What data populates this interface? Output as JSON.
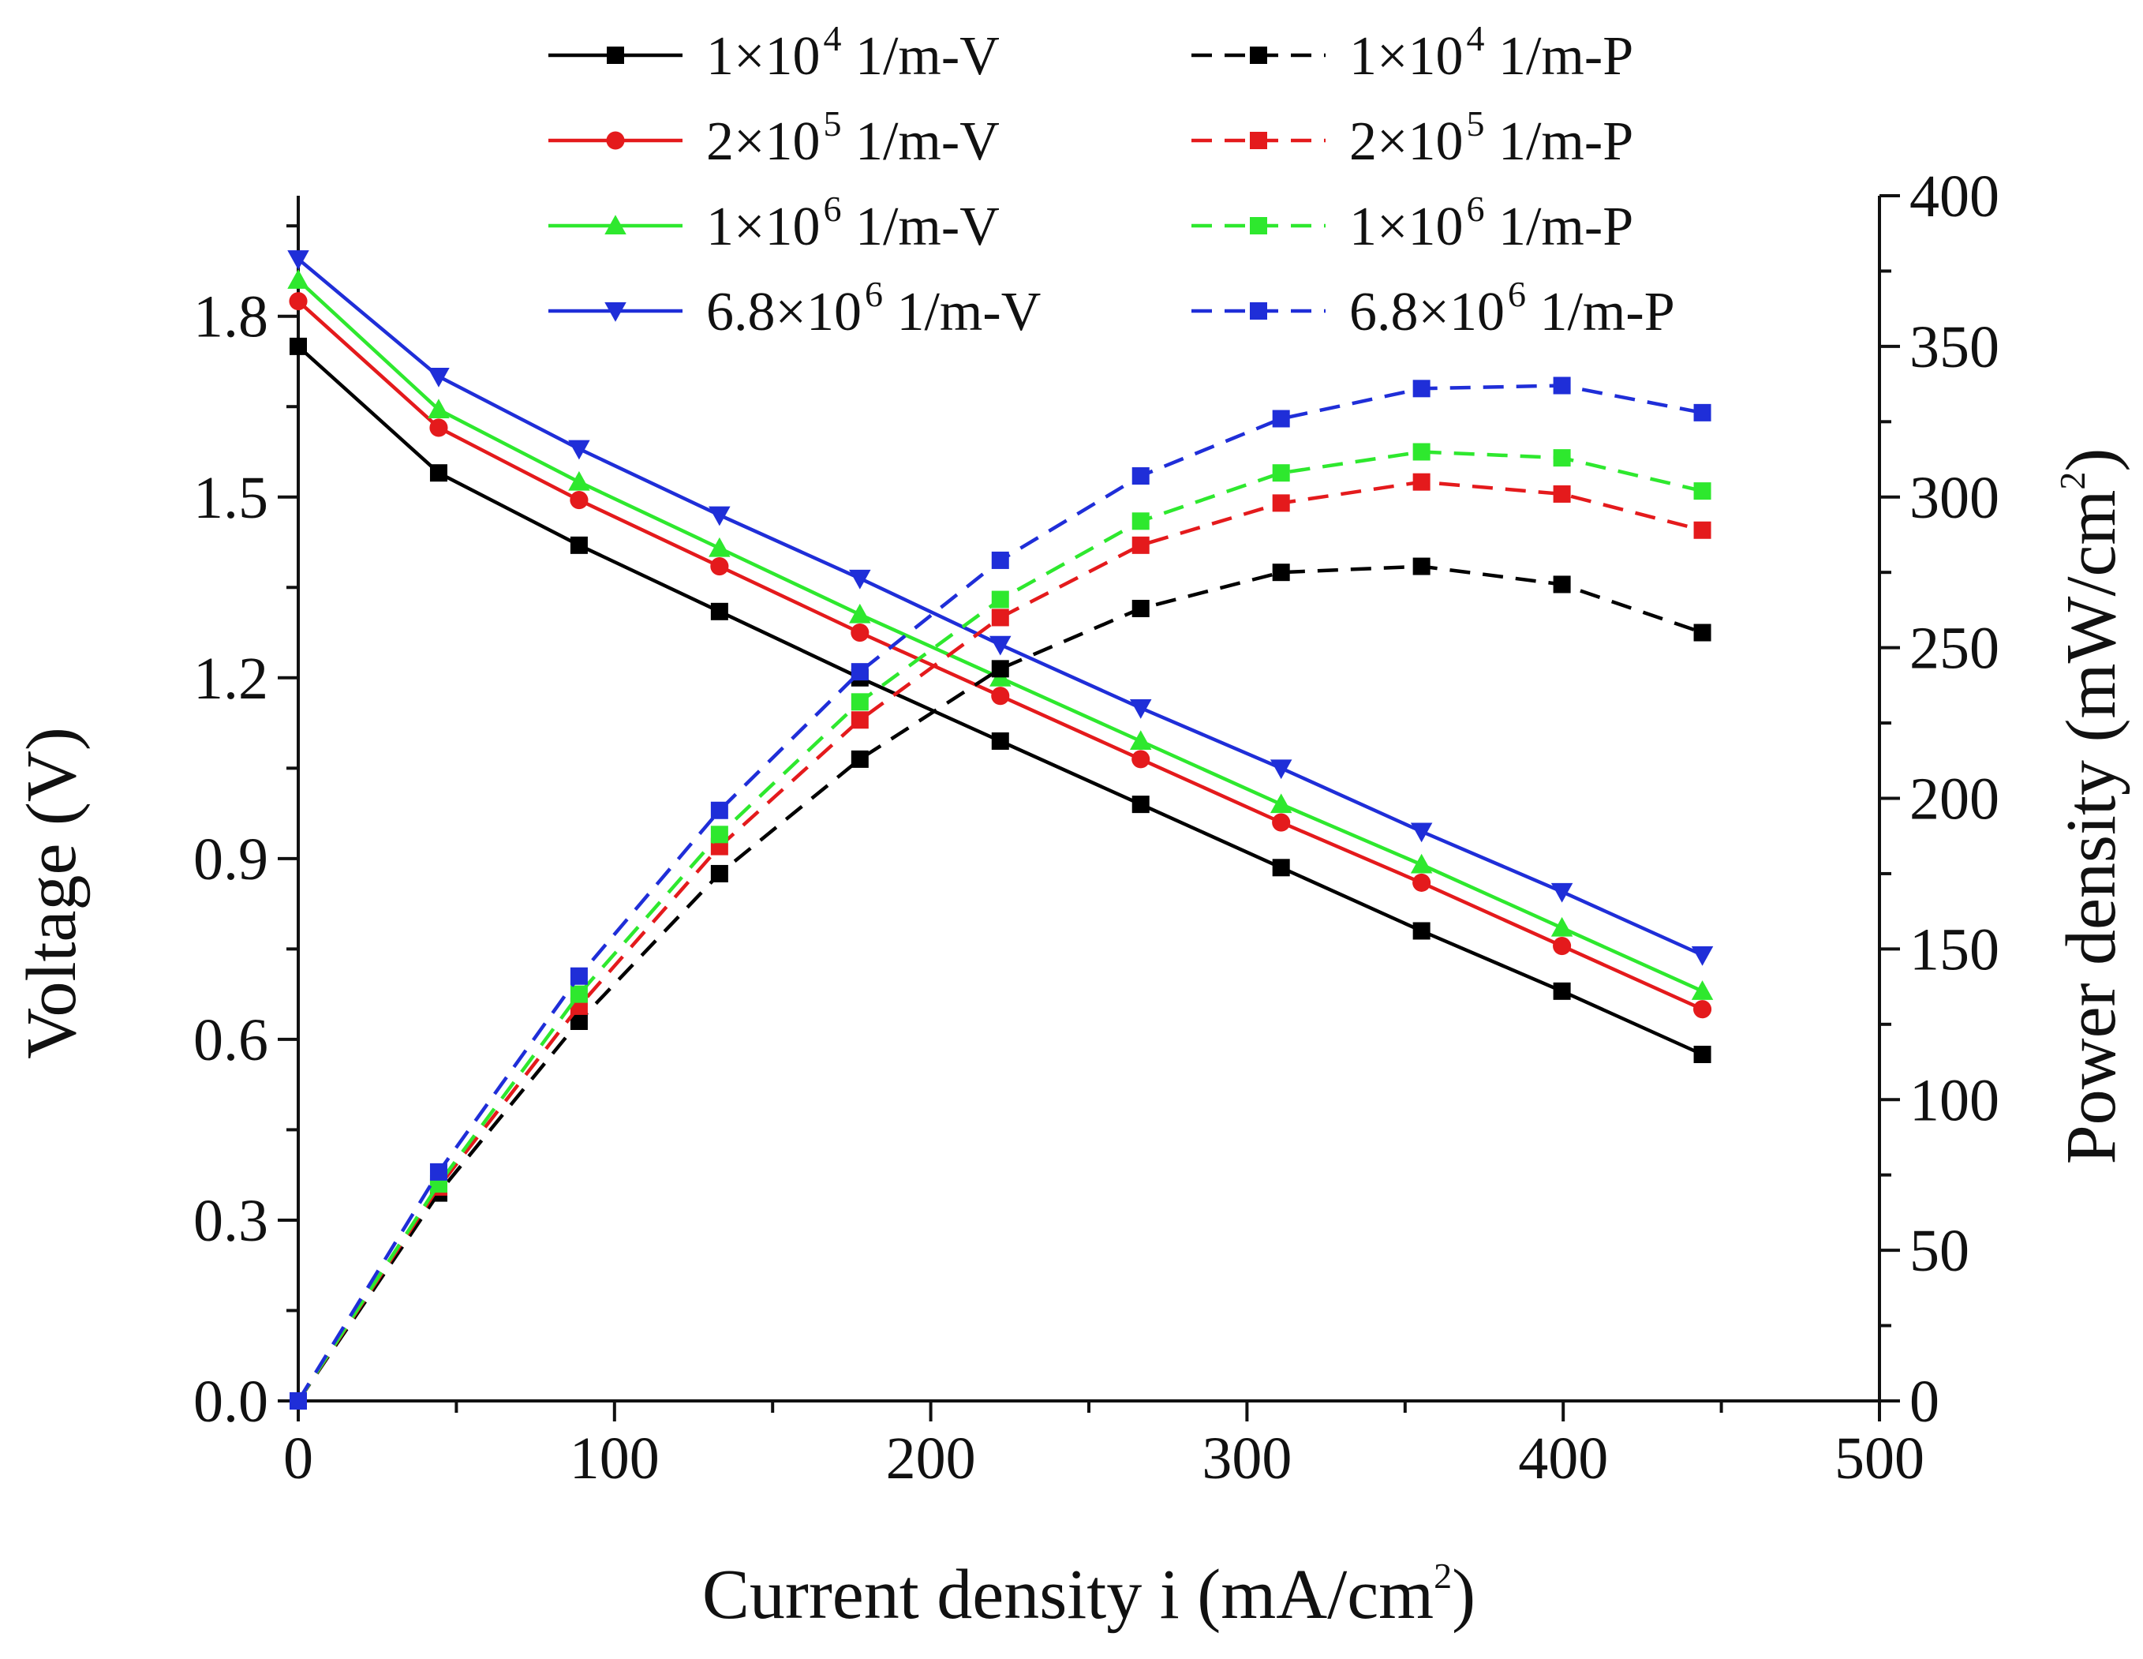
{
  "chart_data": {
    "type": "line",
    "title": "",
    "x_axis": {
      "label": "Current density i (mA/cm",
      "label_sup": "2",
      "label_end": ")",
      "range": [
        0,
        500
      ],
      "ticks": [
        0,
        100,
        200,
        300,
        400,
        500
      ],
      "tick_labels": [
        "0",
        "100",
        "200",
        "300",
        "400",
        "500"
      ],
      "minor_step": 50
    },
    "y_axis_left": {
      "label": "Voltage (V)",
      "range": [
        0,
        2.0
      ],
      "ticks": [
        0,
        0.3,
        0.6,
        0.9,
        1.2,
        1.5,
        1.8
      ],
      "tick_labels": [
        "0.0",
        "0.3",
        "0.6",
        "0.9",
        "1.2",
        "1.5",
        "1.8"
      ],
      "minor_step": 0.15
    },
    "y_axis_right": {
      "label": "Power density (mW/cm",
      "label_sup": "2",
      "label_end": ")",
      "range": [
        0,
        400
      ],
      "ticks": [
        0,
        50,
        100,
        150,
        200,
        250,
        300,
        350,
        400
      ],
      "tick_labels": [
        "0",
        "50",
        "100",
        "150",
        "200",
        "250",
        "300",
        "350",
        "400"
      ],
      "minor_step": 25
    },
    "x": [
      0,
      44.4,
      88.8,
      133.2,
      177.6,
      222,
      266.4,
      310.8,
      355.2,
      399.6,
      444
    ],
    "series": [
      {
        "name": "1×10^4 1/m-V",
        "legend_prefix": "1×10",
        "legend_exp": "4",
        "legend_suffix": " 1/m-V",
        "axis": "left",
        "line": "solid",
        "marker": "square",
        "color": "#000000",
        "values": [
          1.75,
          1.54,
          1.42,
          1.31,
          1.2,
          1.095,
          0.99,
          0.885,
          0.78,
          0.68,
          0.575
        ]
      },
      {
        "name": "2×10^5 1/m-V",
        "legend_prefix": "2×10",
        "legend_exp": "5",
        "legend_suffix": " 1/m-V",
        "axis": "left",
        "line": "solid",
        "marker": "circle",
        "color": "#e41a1c",
        "values": [
          1.825,
          1.615,
          1.495,
          1.385,
          1.275,
          1.17,
          1.065,
          0.96,
          0.86,
          0.755,
          0.65
        ]
      },
      {
        "name": "1×10^6 1/m-V",
        "legend_prefix": "1×10",
        "legend_exp": "6",
        "legend_suffix": " 1/m-V",
        "axis": "left",
        "line": "solid",
        "marker": "triangle-up",
        "color": "#2ee82e",
        "values": [
          1.86,
          1.645,
          1.525,
          1.415,
          1.305,
          1.2,
          1.095,
          0.99,
          0.89,
          0.785,
          0.68
        ]
      },
      {
        "name": "6.8×10^6 1/m-V",
        "legend_prefix": "6.8×10",
        "legend_exp": "6",
        "legend_suffix": " 1/m-V",
        "axis": "left",
        "line": "solid",
        "marker": "triangle-down",
        "color": "#1f2ed8",
        "values": [
          1.895,
          1.7,
          1.58,
          1.47,
          1.365,
          1.255,
          1.15,
          1.05,
          0.945,
          0.845,
          0.74
        ]
      },
      {
        "name": "1×10^4 1/m-P",
        "legend_prefix": "1×10",
        "legend_exp": "4",
        "legend_suffix": " 1/m-P",
        "axis": "right",
        "line": "dashed",
        "marker": "square",
        "color": "#000000",
        "values": [
          0,
          69,
          126,
          175,
          213,
          243,
          263,
          275,
          277,
          271,
          255
        ]
      },
      {
        "name": "2×10^5 1/m-P",
        "legend_prefix": "2×10",
        "legend_exp": "5",
        "legend_suffix": " 1/m-P",
        "axis": "right",
        "line": "dashed",
        "marker": "square",
        "color": "#e41a1c",
        "values": [
          0,
          71,
          131,
          184,
          226,
          260,
          284,
          298,
          305,
          301,
          289
        ]
      },
      {
        "name": "1×10^6 1/m-P",
        "legend_prefix": "1×10",
        "legend_exp": "6",
        "legend_suffix": " 1/m-P",
        "axis": "right",
        "line": "dashed",
        "marker": "square",
        "color": "#2ee82e",
        "values": [
          0,
          72,
          135,
          188,
          232,
          266,
          292,
          308,
          315,
          313,
          302
        ]
      },
      {
        "name": "6.8×10^6 1/m-P",
        "legend_prefix": "6.8×10",
        "legend_exp": "6",
        "legend_suffix": " 1/m-P",
        "axis": "right",
        "line": "dashed",
        "marker": "square",
        "color": "#1f2ed8",
        "values": [
          0,
          76,
          141,
          196,
          242,
          279,
          307,
          326,
          336,
          337,
          328
        ]
      }
    ],
    "legend": {
      "placement": "top",
      "columns": 2
    },
    "grid": false
  }
}
